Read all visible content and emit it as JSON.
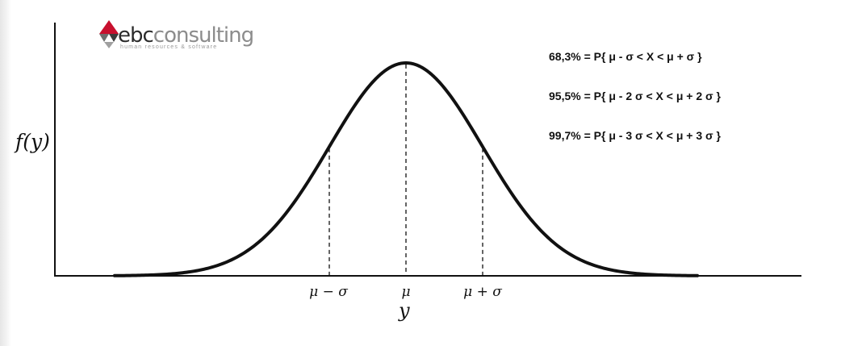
{
  "logo": {
    "part1": "ebc",
    "part2": "consulting",
    "tagline": "human resources & software",
    "color_primary": "#2b2b2b",
    "color_secondary": "#8c8c8c",
    "color_accent": "#c8102e",
    "icon": "cube-logo-icon"
  },
  "diagram": {
    "y_axis_label": "f(y)",
    "x_axis_label": "y",
    "ticks": {
      "minus_sigma": "μ − σ",
      "mu": "μ",
      "plus_sigma": "μ + σ"
    }
  },
  "formulas": [
    "68,3% = P{ μ - σ < X < μ + σ }",
    "95,5% = P{ μ - 2 σ < X < μ + 2 σ }",
    "99,7% = P{ μ - 3 σ < X < μ + 3 σ }"
  ],
  "curve": {
    "type": "normal-distribution",
    "mean": 0,
    "sigma": 1,
    "x_range": [
      -3.8,
      3.8
    ],
    "reference_lines_at": [
      -1,
      0,
      1
    ]
  }
}
